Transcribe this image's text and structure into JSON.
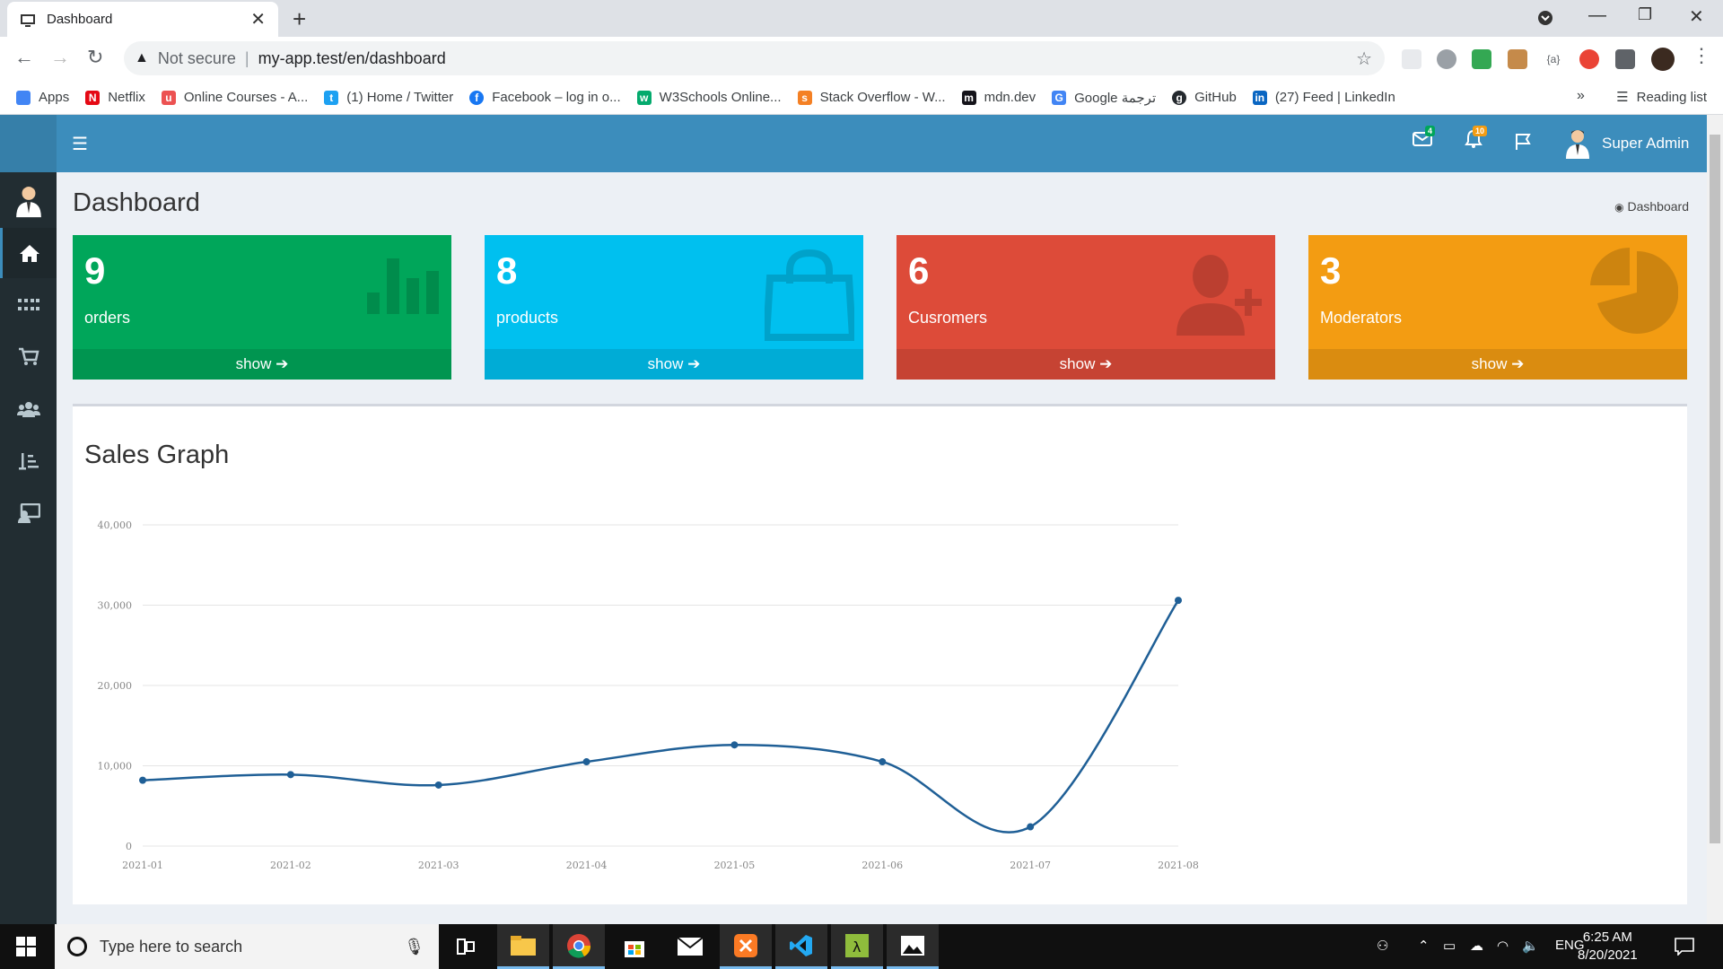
{
  "browser": {
    "tab_title": "Dashboard",
    "security": "Not secure",
    "url": "my-app.test/en/dashboard",
    "bookmarks": [
      {
        "label": "Apps",
        "color": "#4285f4"
      },
      {
        "label": "Netflix",
        "color": "#e50914"
      },
      {
        "label": "Online Courses - A...",
        "color": "#ec5252"
      },
      {
        "label": "(1) Home / Twitter",
        "color": "#1da1f2"
      },
      {
        "label": "Facebook – log in o...",
        "color": "#1877f2"
      },
      {
        "label": "W3Schools Online...",
        "color": "#04aa6d"
      },
      {
        "label": "Stack Overflow - W...",
        "color": "#f48024"
      },
      {
        "label": "mdn.dev",
        "color": "#15141a"
      },
      {
        "label": "Google ترجمة",
        "color": "#4285f4"
      },
      {
        "label": "GitHub",
        "color": "#24292e"
      },
      {
        "label": "(27) Feed | LinkedIn",
        "color": "#0a66c2"
      }
    ],
    "reading_list": "Reading list"
  },
  "header": {
    "mail_badge": "4",
    "notif_badge": "10",
    "user_name": "Super Admin"
  },
  "page": {
    "title": "Dashboard",
    "breadcrumb": "Dashboard"
  },
  "boxes": [
    {
      "count": "9",
      "label": "orders",
      "footer": "show",
      "color": "#00a65a",
      "icon": "bar-chart-icon"
    },
    {
      "count": "8",
      "label": "products",
      "footer": "show",
      "color": "#00c0ef",
      "icon": "shopping-bag-icon"
    },
    {
      "count": "6",
      "label": "Cusromers",
      "footer": "show",
      "color": "#dd4b39",
      "icon": "user-plus-icon"
    },
    {
      "count": "3",
      "label": "Moderators",
      "footer": "show",
      "color": "#f39c12",
      "icon": "pie-chart-icon"
    }
  ],
  "graph": {
    "title": "Sales Graph"
  },
  "chart_data": {
    "type": "line",
    "x": [
      "2021-01",
      "2021-02",
      "2021-03",
      "2021-04",
      "2021-05",
      "2021-06",
      "2021-07",
      "2021-08"
    ],
    "series": [
      {
        "values": [
          8200,
          8900,
          7600,
          10500,
          12600,
          10500,
          2400,
          30600
        ]
      }
    ],
    "ylim": [
      0,
      40000
    ],
    "yticks": [
      "0",
      "10,000",
      "20,000",
      "30,000",
      "40,000"
    ],
    "grid": true,
    "line_color": "#3c8dbc"
  },
  "taskbar": {
    "search_placeholder": "Type here to search",
    "lang": "ENG",
    "time": "6:25 AM",
    "date": "8/20/2021"
  }
}
